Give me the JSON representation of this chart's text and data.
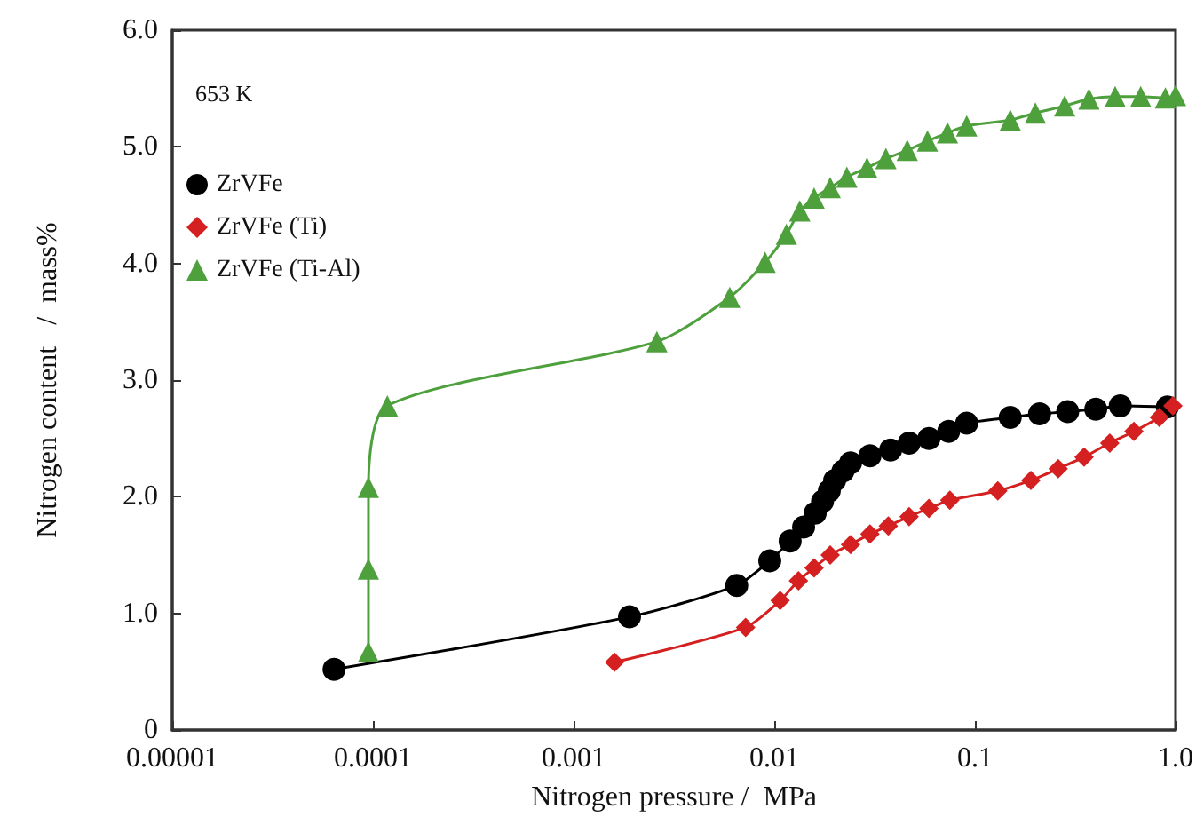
{
  "chart_data": {
    "type": "line",
    "xlabel": "Nitrogen pressure /  MPa",
    "ylabel": "Nitrogen content   /  mass%",
    "annotations": [
      "653 K"
    ],
    "log": "x",
    "legend": "top left",
    "grid": false,
    "line_style": "solid",
    "xlim": [
      1e-05,
      1
    ],
    "xticks": [
      {
        "value": 1e-05,
        "label": "0.00001"
      },
      0.0001,
      0.001,
      0.01,
      0.1,
      {
        "value": 1,
        "label": "1.0"
      }
    ],
    "ylim": [
      0,
      6
    ],
    "yticks": [
      0,
      {
        "value": 1,
        "label": "1.0"
      },
      {
        "value": 2,
        "label": "2.0"
      },
      {
        "value": 3,
        "label": "3.0"
      },
      {
        "value": 4,
        "label": "4.0"
      },
      {
        "value": 5,
        "label": "5.0"
      },
      {
        "value": 6,
        "label": "6.0"
      }
    ],
    "series": [
      {
        "name": "ZrVFe",
        "color": "#000000",
        "marker": "circle",
        "x": [
          6.4e-05,
          0.0019,
          0.0065,
          0.0095,
          0.012,
          0.014,
          0.016,
          0.0174,
          0.0188,
          0.02,
          0.022,
          0.024,
          0.03,
          0.038,
          0.047,
          0.059,
          0.074,
          0.091,
          0.15,
          0.21,
          0.29,
          0.4,
          0.53,
          0.91
        ],
        "values": [
          0.52,
          0.97,
          1.24,
          1.45,
          1.62,
          1.74,
          1.86,
          1.96,
          2.05,
          2.14,
          2.22,
          2.29,
          2.35,
          2.4,
          2.46,
          2.5,
          2.56,
          2.63,
          2.68,
          2.71,
          2.73,
          2.75,
          2.78,
          2.77
        ]
      },
      {
        "name": "ZrVFe (Ti)",
        "color": "#d42020",
        "marker": "diamond",
        "x": [
          0.0016,
          0.0072,
          0.0107,
          0.0132,
          0.0158,
          0.019,
          0.024,
          0.03,
          0.037,
          0.047,
          0.059,
          0.075,
          0.13,
          0.19,
          0.26,
          0.35,
          0.47,
          0.62,
          0.83,
          0.97
        ],
        "values": [
          0.58,
          0.88,
          1.11,
          1.28,
          1.39,
          1.5,
          1.59,
          1.68,
          1.75,
          1.83,
          1.9,
          1.97,
          2.05,
          2.14,
          2.24,
          2.34,
          2.46,
          2.56,
          2.68,
          2.78
        ]
      },
      {
        "name": "ZrVFe (Ti-Al)",
        "color": "#4ea03c",
        "marker": "triangle",
        "x": [
          9.5e-05,
          9.5e-05,
          9.5e-05,
          0.000118,
          0.0026,
          0.006,
          0.009,
          0.0115,
          0.0134,
          0.0158,
          0.019,
          0.023,
          0.029,
          0.036,
          0.046,
          0.058,
          0.073,
          0.091,
          0.15,
          0.2,
          0.28,
          0.37,
          0.5,
          0.67,
          0.89,
          1.0
        ],
        "values": [
          0.67,
          1.38,
          2.08,
          2.78,
          3.33,
          3.71,
          4.01,
          4.25,
          4.45,
          4.56,
          4.65,
          4.74,
          4.82,
          4.9,
          4.97,
          5.05,
          5.12,
          5.18,
          5.23,
          5.29,
          5.35,
          5.41,
          5.43,
          5.43,
          5.42,
          5.44
        ]
      }
    ]
  }
}
